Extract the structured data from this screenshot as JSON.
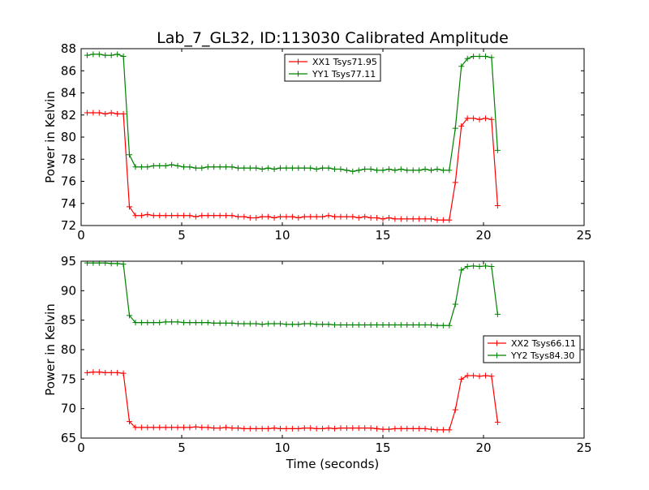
{
  "figure": {
    "title": "Lab_7_GL32, ID:113030 Calibrated Amplitude"
  },
  "chart_data": [
    {
      "type": "line",
      "title": "Lab_7_GL32, ID:113030 Calibrated Amplitude",
      "xlabel": "",
      "ylabel": "Power in Kelvin",
      "xlim": [
        0,
        25
      ],
      "ylim": [
        72,
        88
      ],
      "xticks": [
        0,
        5,
        10,
        15,
        20,
        25
      ],
      "yticks": [
        72,
        74,
        76,
        78,
        80,
        82,
        84,
        86,
        88
      ],
      "grid": false,
      "legend_position": "top-center",
      "marker": "+",
      "series": [
        {
          "name": "XX1 Tsys71.95",
          "color": "#ff0000",
          "x": [
            0.3,
            0.6,
            0.9,
            1.2,
            1.5,
            1.8,
            2.1,
            2.4,
            2.7,
            3.0,
            3.3,
            3.6,
            3.9,
            4.2,
            4.5,
            4.8,
            5.1,
            5.4,
            5.7,
            6.0,
            6.3,
            6.6,
            6.9,
            7.2,
            7.5,
            7.8,
            8.1,
            8.4,
            8.7,
            9.0,
            9.3,
            9.6,
            9.9,
            10.2,
            10.5,
            10.8,
            11.1,
            11.4,
            11.7,
            12.0,
            12.3,
            12.6,
            12.9,
            13.2,
            13.5,
            13.8,
            14.1,
            14.4,
            14.7,
            15.0,
            15.3,
            15.6,
            15.9,
            16.2,
            16.5,
            16.8,
            17.1,
            17.4,
            17.7,
            18.0,
            18.3,
            18.6,
            18.9,
            19.2,
            19.5,
            19.8,
            20.1,
            20.4,
            20.7
          ],
          "y": [
            82.2,
            82.2,
            82.2,
            82.1,
            82.2,
            82.1,
            82.1,
            73.7,
            72.9,
            72.9,
            73.0,
            72.9,
            72.9,
            72.9,
            72.9,
            72.9,
            72.9,
            72.9,
            72.8,
            72.9,
            72.9,
            72.9,
            72.9,
            72.9,
            72.9,
            72.8,
            72.8,
            72.7,
            72.7,
            72.8,
            72.8,
            72.7,
            72.8,
            72.8,
            72.8,
            72.7,
            72.8,
            72.8,
            72.8,
            72.8,
            72.9,
            72.8,
            72.8,
            72.8,
            72.8,
            72.7,
            72.8,
            72.7,
            72.7,
            72.6,
            72.7,
            72.6,
            72.6,
            72.6,
            72.6,
            72.6,
            72.6,
            72.6,
            72.5,
            72.5,
            72.5,
            75.9,
            81.0,
            81.7,
            81.7,
            81.6,
            81.7,
            81.6,
            73.8
          ]
        },
        {
          "name": "YY1 Tsys77.11",
          "color": "#008000",
          "x": [
            0.3,
            0.6,
            0.9,
            1.2,
            1.5,
            1.8,
            2.1,
            2.4,
            2.7,
            3.0,
            3.3,
            3.6,
            3.9,
            4.2,
            4.5,
            4.8,
            5.1,
            5.4,
            5.7,
            6.0,
            6.3,
            6.6,
            6.9,
            7.2,
            7.5,
            7.8,
            8.1,
            8.4,
            8.7,
            9.0,
            9.3,
            9.6,
            9.9,
            10.2,
            10.5,
            10.8,
            11.1,
            11.4,
            11.7,
            12.0,
            12.3,
            12.6,
            12.9,
            13.2,
            13.5,
            13.8,
            14.1,
            14.4,
            14.7,
            15.0,
            15.3,
            15.6,
            15.9,
            16.2,
            16.5,
            16.8,
            17.1,
            17.4,
            17.7,
            18.0,
            18.3,
            18.6,
            18.9,
            19.2,
            19.5,
            19.8,
            20.1,
            20.4,
            20.7
          ],
          "y": [
            87.4,
            87.5,
            87.5,
            87.4,
            87.4,
            87.5,
            87.3,
            78.4,
            77.3,
            77.3,
            77.3,
            77.4,
            77.4,
            77.4,
            77.5,
            77.4,
            77.3,
            77.3,
            77.2,
            77.2,
            77.3,
            77.3,
            77.3,
            77.3,
            77.3,
            77.2,
            77.2,
            77.2,
            77.2,
            77.1,
            77.2,
            77.1,
            77.2,
            77.2,
            77.2,
            77.2,
            77.2,
            77.2,
            77.1,
            77.2,
            77.2,
            77.1,
            77.1,
            77.0,
            76.9,
            77.0,
            77.1,
            77.1,
            77.0,
            77.0,
            77.1,
            77.0,
            77.1,
            77.0,
            77.0,
            77.0,
            77.1,
            77.0,
            77.1,
            77.0,
            77.0,
            80.8,
            86.4,
            87.1,
            87.3,
            87.3,
            87.3,
            87.2,
            78.8
          ]
        }
      ]
    },
    {
      "type": "line",
      "title": "",
      "xlabel": "Time (seconds)",
      "ylabel": "Power in Kelvin",
      "xlim": [
        0,
        25
      ],
      "ylim": [
        65,
        95
      ],
      "xticks": [
        0,
        5,
        10,
        15,
        20,
        25
      ],
      "yticks": [
        65,
        70,
        75,
        80,
        85,
        90,
        95
      ],
      "grid": false,
      "legend_position": "center-right",
      "marker": "+",
      "series": [
        {
          "name": "XX2 Tsys66.11",
          "color": "#ff0000",
          "x": [
            0.3,
            0.6,
            0.9,
            1.2,
            1.5,
            1.8,
            2.1,
            2.4,
            2.7,
            3.0,
            3.3,
            3.6,
            3.9,
            4.2,
            4.5,
            4.8,
            5.1,
            5.4,
            5.7,
            6.0,
            6.3,
            6.6,
            6.9,
            7.2,
            7.5,
            7.8,
            8.1,
            8.4,
            8.7,
            9.0,
            9.3,
            9.6,
            9.9,
            10.2,
            10.5,
            10.8,
            11.1,
            11.4,
            11.7,
            12.0,
            12.3,
            12.6,
            12.9,
            13.2,
            13.5,
            13.8,
            14.1,
            14.4,
            14.7,
            15.0,
            15.3,
            15.6,
            15.9,
            16.2,
            16.5,
            16.8,
            17.1,
            17.4,
            17.7,
            18.0,
            18.3,
            18.6,
            18.9,
            19.2,
            19.5,
            19.8,
            20.1,
            20.4,
            20.7
          ],
          "y": [
            76.1,
            76.2,
            76.2,
            76.1,
            76.1,
            76.1,
            76.0,
            67.8,
            66.8,
            66.8,
            66.8,
            66.8,
            66.8,
            66.8,
            66.8,
            66.8,
            66.8,
            66.8,
            66.9,
            66.8,
            66.8,
            66.7,
            66.7,
            66.8,
            66.7,
            66.7,
            66.6,
            66.6,
            66.6,
            66.6,
            66.6,
            66.7,
            66.6,
            66.6,
            66.6,
            66.6,
            66.7,
            66.7,
            66.6,
            66.6,
            66.7,
            66.6,
            66.7,
            66.7,
            66.7,
            66.7,
            66.7,
            66.7,
            66.6,
            66.5,
            66.5,
            66.6,
            66.6,
            66.6,
            66.6,
            66.6,
            66.6,
            66.5,
            66.4,
            66.4,
            66.4,
            69.8,
            75.0,
            75.6,
            75.6,
            75.5,
            75.6,
            75.5,
            67.7
          ]
        },
        {
          "name": "YY2 Tsys84.30",
          "color": "#008000",
          "x": [
            0.3,
            0.6,
            0.9,
            1.2,
            1.5,
            1.8,
            2.1,
            2.4,
            2.7,
            3.0,
            3.3,
            3.6,
            3.9,
            4.2,
            4.5,
            4.8,
            5.1,
            5.4,
            5.7,
            6.0,
            6.3,
            6.6,
            6.9,
            7.2,
            7.5,
            7.8,
            8.1,
            8.4,
            8.7,
            9.0,
            9.3,
            9.6,
            9.9,
            10.2,
            10.5,
            10.8,
            11.1,
            11.4,
            11.7,
            12.0,
            12.3,
            12.6,
            12.9,
            13.2,
            13.5,
            13.8,
            14.1,
            14.4,
            14.7,
            15.0,
            15.3,
            15.6,
            15.9,
            16.2,
            16.5,
            16.8,
            17.1,
            17.4,
            17.7,
            18.0,
            18.3,
            18.6,
            18.9,
            19.2,
            19.5,
            19.8,
            20.1,
            20.4,
            20.7
          ],
          "y": [
            94.7,
            94.7,
            94.7,
            94.7,
            94.6,
            94.6,
            94.5,
            85.8,
            84.6,
            84.6,
            84.6,
            84.6,
            84.6,
            84.7,
            84.7,
            84.7,
            84.6,
            84.6,
            84.6,
            84.6,
            84.6,
            84.5,
            84.5,
            84.5,
            84.5,
            84.4,
            84.4,
            84.4,
            84.4,
            84.3,
            84.4,
            84.4,
            84.4,
            84.3,
            84.3,
            84.3,
            84.4,
            84.4,
            84.3,
            84.3,
            84.3,
            84.2,
            84.2,
            84.2,
            84.2,
            84.2,
            84.2,
            84.2,
            84.2,
            84.2,
            84.2,
            84.2,
            84.2,
            84.2,
            84.2,
            84.2,
            84.2,
            84.2,
            84.1,
            84.1,
            84.1,
            87.7,
            93.5,
            94.1,
            94.2,
            94.1,
            94.2,
            94.1,
            86.0
          ]
        }
      ]
    }
  ]
}
